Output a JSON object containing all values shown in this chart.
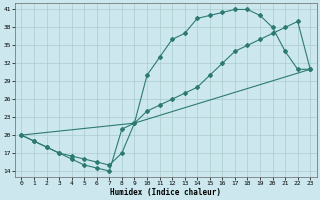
{
  "xlabel": "Humidex (Indice chaleur)",
  "xlim": [
    -0.5,
    23.5
  ],
  "ylim": [
    13,
    42
  ],
  "yticks": [
    14,
    17,
    20,
    23,
    26,
    29,
    32,
    35,
    38,
    41
  ],
  "xticks": [
    0,
    1,
    2,
    3,
    4,
    5,
    6,
    7,
    8,
    9,
    10,
    11,
    12,
    13,
    14,
    15,
    16,
    17,
    18,
    19,
    20,
    21,
    22,
    23
  ],
  "bg_color": "#cce8ee",
  "grid_color": "#aacccc",
  "line_color": "#2d7a72",
  "line1_x": [
    0,
    1,
    2,
    3,
    4,
    5,
    6,
    7,
    8,
    9,
    10,
    11,
    12,
    13,
    14,
    15,
    16,
    17,
    18,
    19,
    20,
    21,
    22,
    23
  ],
  "line1_y": [
    20,
    19,
    18,
    17,
    16,
    15,
    14.5,
    14,
    21,
    22,
    30,
    33,
    36,
    37,
    39.5,
    40,
    40.5,
    41,
    41,
    40,
    38,
    34,
    31,
    31
  ],
  "line2_x": [
    0,
    1,
    2,
    3,
    4,
    5,
    6,
    7,
    8,
    9,
    10,
    11,
    12,
    13,
    14,
    15,
    16,
    17,
    18,
    19,
    20,
    21,
    22,
    23
  ],
  "line2_y": [
    20,
    19,
    18,
    17,
    16.5,
    16,
    15.5,
    15,
    17,
    22,
    24,
    25,
    26,
    27,
    28,
    30,
    32,
    34,
    35,
    36,
    37,
    38,
    39,
    31
  ],
  "line3_x": [
    0,
    9,
    23
  ],
  "line3_y": [
    20,
    22,
    31
  ],
  "marker": "D",
  "markersize": 2.0,
  "linewidth": 0.8
}
